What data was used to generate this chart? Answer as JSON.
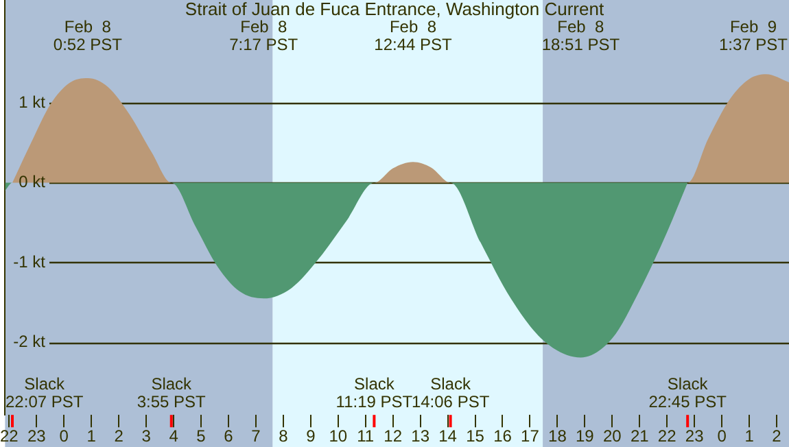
{
  "chart_data": {
    "type": "area",
    "title": "Strait of Juan de Fuca Entrance, Washington Current",
    "xlim": [
      "--02-07T21:51",
      "--02-09T02:27"
    ],
    "xticks": [
      {
        "value": "--02-07T22:00",
        "label": "22"
      },
      {
        "value": "--02-07T23:00",
        "label": "23"
      },
      {
        "value": "--02-08T00:00",
        "label": "0"
      },
      {
        "value": "--02-08T01:00",
        "label": "1"
      },
      {
        "value": "--02-08T02:00",
        "label": "2"
      },
      {
        "value": "--02-08T03:00",
        "label": "3"
      },
      {
        "value": "--02-08T04:00",
        "label": "4"
      },
      {
        "value": "--02-08T05:00",
        "label": "5"
      },
      {
        "value": "--02-08T06:00",
        "label": "6"
      },
      {
        "value": "--02-08T07:00",
        "label": "7"
      },
      {
        "value": "--02-08T08:00",
        "label": "8"
      },
      {
        "value": "--02-08T09:00",
        "label": "9"
      },
      {
        "value": "--02-08T10:00",
        "label": "10"
      },
      {
        "value": "--02-08T11:00",
        "label": "11"
      },
      {
        "value": "--02-08T12:00",
        "label": "12"
      },
      {
        "value": "--02-08T13:00",
        "label": "13"
      },
      {
        "value": "--02-08T14:00",
        "label": "14"
      },
      {
        "value": "--02-08T15:00",
        "label": "15"
      },
      {
        "value": "--02-08T16:00",
        "label": "16"
      },
      {
        "value": "--02-08T17:00",
        "label": "17"
      },
      {
        "value": "--02-08T18:00",
        "label": "18"
      },
      {
        "value": "--02-08T19:00",
        "label": "19"
      },
      {
        "value": "--02-08T20:00",
        "label": "20"
      },
      {
        "value": "--02-08T21:00",
        "label": "21"
      },
      {
        "value": "--02-08T22:00",
        "label": "22"
      },
      {
        "value": "--02-08T23:00",
        "label": "23"
      },
      {
        "value": "--02-09T00:00",
        "label": "0"
      },
      {
        "value": "--02-09T01:00",
        "label": "1"
      },
      {
        "value": "--02-09T02:00",
        "label": "2"
      }
    ],
    "ylim": [
      -2.91,
      2.29
    ],
    "yticks": [
      {
        "value": 1,
        "label": "1 kt"
      },
      {
        "value": 0,
        "label": "0 kt"
      },
      {
        "value": -1,
        "label": "-1 kt"
      },
      {
        "value": -2,
        "label": "-2 kt"
      }
    ],
    "series": [
      {
        "color": "#bb9977",
        "x": [
          "--02-07T22:07",
          "--02-07T22:48",
          "--02-07T23:30",
          "--02-08T00:12",
          "--02-08T00:52",
          "--02-08T01:36",
          "--02-08T02:24",
          "--02-08T03:12",
          "--02-08T03:55",
          "--02-08T11:19",
          "--02-08T12:00",
          "--02-08T12:44",
          "--02-08T13:24",
          "--02-08T14:06",
          "--02-08T22:45",
          "--02-08T23:30",
          "--02-09T00:18",
          "--02-09T01:00",
          "--02-09T01:37",
          "--02-09T02:27"
        ],
        "values": [
          0,
          0.5,
          0.98,
          1.25,
          1.31,
          1.2,
          0.85,
          0.38,
          0,
          0,
          0.18,
          0.26,
          0.19,
          0,
          0,
          0.55,
          1.05,
          1.3,
          1.36,
          1.26
        ]
      },
      {
        "color": "#519872",
        "x": [
          "--02-07T21:51",
          "--02-07T22:07",
          "--02-08T03:55",
          "--02-08T04:48",
          "--02-08T05:36",
          "--02-08T06:24",
          "--02-08T07:17",
          "--02-08T08:18",
          "--02-08T09:18",
          "--02-08T10:18",
          "--02-08T11:19",
          "--02-08T14:06",
          "--02-08T15:12",
          "--02-08T16:18",
          "--02-08T17:30",
          "--02-08T18:51",
          "--02-08T20:00",
          "--02-08T21:00",
          "--02-08T22:00",
          "--02-08T22:45"
        ],
        "values": [
          -0.1,
          0,
          0,
          -0.55,
          -1.05,
          -1.36,
          -1.45,
          -1.32,
          -0.95,
          -0.48,
          0,
          0,
          -0.75,
          -1.45,
          -1.98,
          -2.19,
          -1.95,
          -1.35,
          -0.62,
          0
        ]
      }
    ],
    "bands": [
      {
        "axis": "x",
        "from": "--02-07T21:51",
        "to": "--02-08T07:37",
        "color": "#adbfd6"
      },
      {
        "axis": "x",
        "from": "--02-08T07:37",
        "to": "--02-08T17:28",
        "color": "#e0f8ff"
      },
      {
        "axis": "x",
        "from": "--02-08T17:28",
        "to": "--02-09T02:27",
        "color": "#adbfd6"
      }
    ],
    "ref_lines": [
      {
        "axis": "x",
        "value": "--02-07T22:07",
        "label": "Slack\n22:07 PST",
        "color": "#ff0000"
      },
      {
        "axis": "x",
        "value": "--02-08T03:55",
        "label": "Slack\n3:55 PST",
        "color": "#ff0000"
      },
      {
        "axis": "x",
        "value": "--02-08T11:19",
        "label": "Slack\n11:19 PST",
        "color": "#ff0000"
      },
      {
        "axis": "x",
        "value": "--02-08T14:06",
        "label": "Slack\n14:06 PST",
        "color": "#ff0000"
      },
      {
        "axis": "x",
        "value": "--02-08T22:45",
        "label": "Slack\n22:45 PST",
        "color": "#ff0000"
      }
    ],
    "annotations": [
      "Feb  8\n0:52 PST",
      "Feb  8\n7:17 PST",
      "Feb  8\n12:44 PST",
      "Feb  8\n18:51 PST",
      "Feb  9\n1:37 PST"
    ],
    "grid": "y",
    "legend": false
  }
}
